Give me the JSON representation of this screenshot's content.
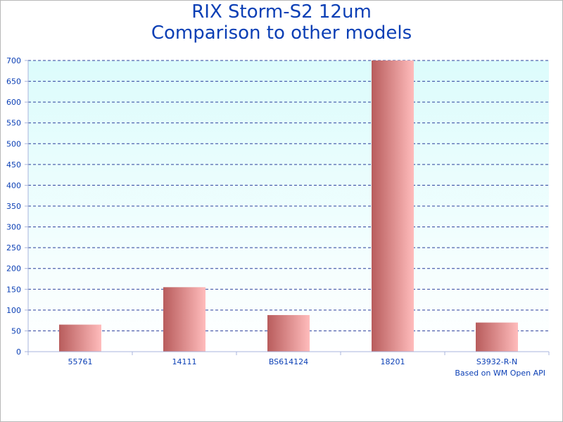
{
  "chart_data": {
    "type": "bar",
    "title_lines": [
      "RIX Storm-S2 12um",
      "Comparison to other models"
    ],
    "categories": [
      "55761",
      "14111",
      "BS614124",
      "18201",
      "S3932-R-N"
    ],
    "values": [
      65,
      155,
      88,
      700,
      70
    ],
    "ylim": [
      0,
      700
    ],
    "yticks": [
      0,
      50,
      100,
      150,
      200,
      250,
      300,
      350,
      400,
      450,
      500,
      550,
      600,
      650,
      700
    ],
    "grid": true,
    "legend": "none",
    "note": "Based on WM Open API",
    "colors": {
      "bar_dark": "#b85c5c",
      "bar_light": "#ffbcbc",
      "plot_top": "#dcfcfc",
      "plot_bottom": "#ffffff",
      "grid": "#2b3f9c",
      "axis": "#a8b4dc",
      "text": "#0b3fb5"
    }
  }
}
